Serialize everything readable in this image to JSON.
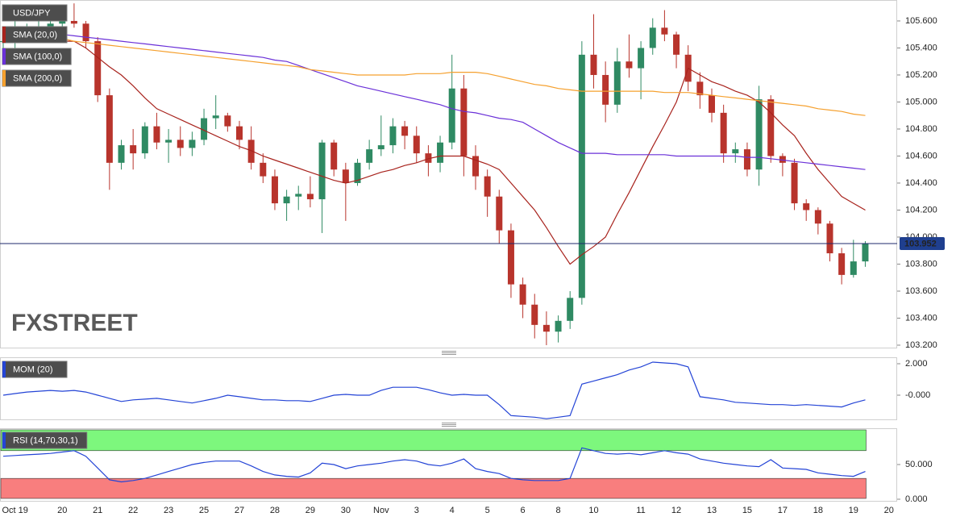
{
  "chart_data": [
    {
      "type": "candlestick",
      "title": "USD/JPY",
      "watermark": "FXSTREET",
      "categories": [
        null,
        "Oct 19",
        null,
        null,
        null,
        "20",
        null,
        null,
        "21",
        null,
        null,
        "22",
        null,
        null,
        "23",
        null,
        null,
        "25",
        null,
        null,
        "27",
        null,
        null,
        "28",
        null,
        null,
        "29",
        null,
        null,
        "30",
        null,
        null,
        "Nov",
        null,
        null,
        "3",
        null,
        null,
        "4",
        null,
        null,
        "5",
        null,
        null,
        "6",
        null,
        null,
        "8",
        null,
        null,
        "10",
        null,
        null,
        null,
        "11",
        null,
        null,
        "12",
        null,
        null,
        "13",
        null,
        null,
        "15",
        null,
        null,
        "17",
        null,
        null,
        "18",
        null,
        null,
        "19",
        null,
        null,
        "20"
      ],
      "open": [
        105.45,
        105.45,
        105.5,
        105.52,
        105.55,
        105.58,
        105.6,
        105.58,
        105.45,
        105.05,
        104.55,
        104.68,
        104.62,
        104.82,
        104.7,
        104.72,
        104.66,
        104.72,
        104.88,
        104.9,
        104.82,
        104.72,
        104.55,
        104.45,
        104.25,
        104.3,
        104.32,
        104.28,
        104.7,
        104.5,
        104.4,
        104.55,
        104.65,
        104.68,
        104.82,
        104.75,
        104.62,
        104.55,
        104.7,
        105.1,
        104.6,
        104.45,
        104.3,
        104.05,
        103.65,
        103.5,
        103.35,
        103.3,
        103.38,
        103.55,
        105.35,
        105.2,
        104.98,
        105.3,
        105.25,
        105.4,
        105.55,
        105.5,
        105.35,
        105.15,
        105.05,
        104.92,
        104.62,
        104.65,
        104.5,
        105.02,
        104.6,
        104.55,
        104.25,
        104.2,
        104.1,
        103.88,
        103.72,
        103.82,
        null,
        null
      ],
      "high": [
        105.55,
        105.6,
        105.58,
        105.6,
        105.62,
        105.68,
        105.73,
        105.6,
        105.48,
        105.1,
        104.72,
        104.8,
        104.85,
        104.92,
        104.8,
        104.82,
        104.78,
        104.95,
        105.05,
        104.92,
        104.86,
        104.82,
        104.62,
        104.5,
        104.35,
        104.38,
        104.45,
        104.72,
        104.72,
        104.55,
        104.58,
        104.72,
        104.9,
        104.88,
        104.86,
        104.82,
        104.68,
        104.75,
        105.35,
        105.2,
        104.68,
        104.5,
        104.35,
        104.1,
        103.7,
        103.58,
        103.45,
        103.42,
        103.6,
        105.45,
        105.65,
        105.3,
        105.4,
        105.5,
        105.45,
        105.62,
        105.68,
        105.52,
        105.42,
        105.22,
        105.1,
        104.98,
        104.7,
        104.7,
        105.12,
        105.05,
        104.62,
        104.58,
        104.28,
        104.22,
        104.12,
        103.92,
        103.98,
        103.97,
        null,
        null
      ],
      "low": [
        105.35,
        105.4,
        105.45,
        105.48,
        105.5,
        105.5,
        105.55,
        105.4,
        105.0,
        104.35,
        104.5,
        104.5,
        104.58,
        104.65,
        104.55,
        104.6,
        104.6,
        104.68,
        104.8,
        104.78,
        104.65,
        104.5,
        104.4,
        104.2,
        104.12,
        104.2,
        104.22,
        104.03,
        104.45,
        104.12,
        104.38,
        104.5,
        104.6,
        104.62,
        104.65,
        104.55,
        104.45,
        104.48,
        104.65,
        104.45,
        104.35,
        104.15,
        103.95,
        103.55,
        103.4,
        103.25,
        103.2,
        103.22,
        103.32,
        103.5,
        105.1,
        104.85,
        104.92,
        105.18,
        105.02,
        105.35,
        105.45,
        105.25,
        105.08,
        104.95,
        104.85,
        104.55,
        104.55,
        104.45,
        104.38,
        104.55,
        104.45,
        104.2,
        104.12,
        104.02,
        103.82,
        103.65,
        103.7,
        103.78,
        null,
        null
      ],
      "close": [
        105.45,
        105.5,
        105.52,
        105.55,
        105.58,
        105.6,
        105.58,
        105.45,
        105.05,
        104.55,
        104.68,
        104.62,
        104.82,
        104.7,
        104.72,
        104.66,
        104.72,
        104.88,
        104.9,
        104.82,
        104.72,
        104.55,
        104.45,
        104.25,
        104.3,
        104.32,
        104.28,
        104.7,
        104.5,
        104.4,
        104.55,
        104.65,
        104.68,
        104.82,
        104.75,
        104.62,
        104.55,
        104.7,
        105.1,
        104.6,
        104.45,
        104.3,
        104.05,
        103.65,
        103.5,
        103.35,
        103.3,
        103.38,
        103.55,
        105.35,
        105.2,
        104.98,
        105.3,
        105.25,
        105.4,
        105.55,
        105.5,
        105.35,
        105.15,
        105.05,
        104.92,
        104.62,
        104.65,
        104.5,
        105.02,
        104.6,
        104.55,
        104.25,
        104.2,
        104.1,
        103.88,
        103.72,
        103.82,
        103.952,
        null,
        null
      ],
      "up_color": "#2f8a63",
      "down_color": "#b8342c",
      "series": [
        {
          "name": "SMA (20,0)",
          "color": "#a8231d",
          "values": [
            105.45,
            105.45,
            105.45,
            105.45,
            105.45,
            105.45,
            105.45,
            105.4,
            105.33,
            105.26,
            105.2,
            105.12,
            105.03,
            104.95,
            104.91,
            104.87,
            104.83,
            104.79,
            104.75,
            104.71,
            104.67,
            104.64,
            104.6,
            104.57,
            104.54,
            104.51,
            104.48,
            104.45,
            104.42,
            104.4,
            104.42,
            104.45,
            104.48,
            104.5,
            104.53,
            104.55,
            104.58,
            104.6,
            104.6,
            104.6,
            104.57,
            104.54,
            104.5,
            104.4,
            104.3,
            104.2,
            104.07,
            103.93,
            103.8,
            103.87,
            103.93,
            104.0,
            104.17,
            104.33,
            104.5,
            104.67,
            104.83,
            105.0,
            105.25,
            105.2,
            105.15,
            105.12,
            105.08,
            105.05,
            105.0,
            104.92,
            104.83,
            104.75,
            104.62,
            104.5,
            104.4,
            104.3,
            104.25,
            104.2,
            null,
            null
          ]
        },
        {
          "name": "SMA (100,0)",
          "color": "#6a30d8",
          "values": [
            105.55,
            105.54,
            105.53,
            105.52,
            105.51,
            105.5,
            105.49,
            105.48,
            105.47,
            105.46,
            105.45,
            105.44,
            105.43,
            105.42,
            105.41,
            105.4,
            105.39,
            105.38,
            105.37,
            105.36,
            105.35,
            105.34,
            105.33,
            105.31,
            105.3,
            105.27,
            105.24,
            105.21,
            105.18,
            105.15,
            105.12,
            105.1,
            105.08,
            105.06,
            105.04,
            105.02,
            105.0,
            104.98,
            104.95,
            104.93,
            104.92,
            104.9,
            104.88,
            104.87,
            104.85,
            104.8,
            104.75,
            104.7,
            104.66,
            104.62,
            104.62,
            104.62,
            104.61,
            104.61,
            104.61,
            104.61,
            104.61,
            104.6,
            104.6,
            104.6,
            104.6,
            104.6,
            104.6,
            104.59,
            104.59,
            104.58,
            104.57,
            104.56,
            104.55,
            104.54,
            104.53,
            104.52,
            104.51,
            104.5,
            null,
            null
          ]
        },
        {
          "name": "SMA (200,0)",
          "color": "#f5a02e",
          "values": [
            105.52,
            105.51,
            105.5,
            105.49,
            105.48,
            105.47,
            105.45,
            105.44,
            105.43,
            105.42,
            105.41,
            105.4,
            105.39,
            105.38,
            105.37,
            105.36,
            105.35,
            105.34,
            105.33,
            105.32,
            105.31,
            105.3,
            105.29,
            105.28,
            105.27,
            105.26,
            105.24,
            105.23,
            105.22,
            105.21,
            105.2,
            105.2,
            105.2,
            105.2,
            105.2,
            105.21,
            105.21,
            105.21,
            105.22,
            105.22,
            105.22,
            105.21,
            105.19,
            105.17,
            105.15,
            105.13,
            105.12,
            105.1,
            105.09,
            105.08,
            105.08,
            105.08,
            105.08,
            105.08,
            105.08,
            105.08,
            105.07,
            105.07,
            105.07,
            105.06,
            105.05,
            105.04,
            105.03,
            105.02,
            105.01,
            105.0,
            104.99,
            104.98,
            104.97,
            104.95,
            104.94,
            104.93,
            104.91,
            104.9,
            null,
            null
          ]
        }
      ],
      "last_price": 103.952,
      "ylim": [
        103.176,
        105.755
      ],
      "yticks": [
        {
          "value": 103.2,
          "label": "103.200"
        },
        {
          "value": 103.4,
          "label": "103.400"
        },
        {
          "value": 103.6,
          "label": "103.600"
        },
        {
          "value": 103.8,
          "label": "103.800"
        },
        {
          "value": 104.0,
          "label": "104.000"
        },
        {
          "value": 104.2,
          "label": "104.200"
        },
        {
          "value": 104.4,
          "label": "104.400"
        },
        {
          "value": 104.6,
          "label": "104.600"
        },
        {
          "value": 104.8,
          "label": "104.800"
        },
        {
          "value": 105.0,
          "label": "105.000"
        },
        {
          "value": 105.2,
          "label": "105.200"
        },
        {
          "value": 105.4,
          "label": "105.400"
        },
        {
          "value": 105.6,
          "label": "105.600"
        }
      ]
    },
    {
      "type": "line",
      "series": [
        {
          "name": "MOM (20)",
          "color": "#2444d6",
          "values": [
            0.0,
            0.1,
            0.2,
            0.25,
            0.3,
            0.25,
            0.3,
            0.2,
            0.0,
            -0.2,
            -0.4,
            -0.3,
            -0.25,
            -0.2,
            -0.3,
            -0.4,
            -0.5,
            -0.35,
            -0.2,
            0.0,
            -0.1,
            -0.2,
            -0.3,
            -0.3,
            -0.35,
            -0.35,
            -0.4,
            -0.2,
            0.0,
            0.05,
            0.0,
            0.0,
            0.3,
            0.5,
            0.5,
            0.5,
            0.35,
            0.15,
            0.0,
            0.05,
            0.0,
            0.0,
            -0.6,
            -1.3,
            -1.35,
            -1.4,
            -1.5,
            -1.4,
            -1.3,
            0.7,
            0.9,
            1.1,
            1.3,
            1.6,
            1.8,
            2.1,
            2.05,
            2.0,
            1.8,
            -0.1,
            -0.2,
            -0.3,
            -0.45,
            -0.5,
            -0.55,
            -0.6,
            -0.6,
            -0.65,
            -0.6,
            -0.65,
            -0.7,
            -0.75,
            -0.5,
            -0.3,
            null,
            null
          ]
        }
      ],
      "ylim": [
        -1.59,
        2.41
      ],
      "yticks": [
        {
          "value": 0,
          "label": "-0.000"
        },
        {
          "value": 2,
          "label": "2.000"
        }
      ]
    },
    {
      "type": "line",
      "bands": [
        30,
        70
      ],
      "band_colors": [
        "#f87e7e",
        "#7df77d"
      ],
      "series": [
        {
          "name": "RSI (14,70,30,1)",
          "color": "#2444d6",
          "values": [
            62,
            63,
            64,
            65,
            66,
            68,
            70,
            62,
            45,
            28,
            25,
            27,
            30,
            35,
            40,
            45,
            50,
            53,
            55,
            55,
            55,
            48,
            40,
            35,
            33,
            32,
            38,
            52,
            50,
            44,
            48,
            50,
            52,
            55,
            57,
            55,
            50,
            48,
            52,
            58,
            44,
            40,
            37,
            30,
            28,
            27,
            27,
            27,
            30,
            74,
            70,
            66,
            65,
            66,
            64,
            67,
            70,
            67,
            65,
            58,
            55,
            52,
            50,
            48,
            47,
            57,
            45,
            44,
            43,
            38,
            36,
            34,
            33,
            40,
            null,
            null
          ]
        }
      ],
      "ylim": [
        -3.5,
        102.3
      ],
      "yticks": [
        {
          "value": 0,
          "label": "0.000"
        },
        {
          "value": 50,
          "label": "50.000"
        }
      ]
    }
  ]
}
